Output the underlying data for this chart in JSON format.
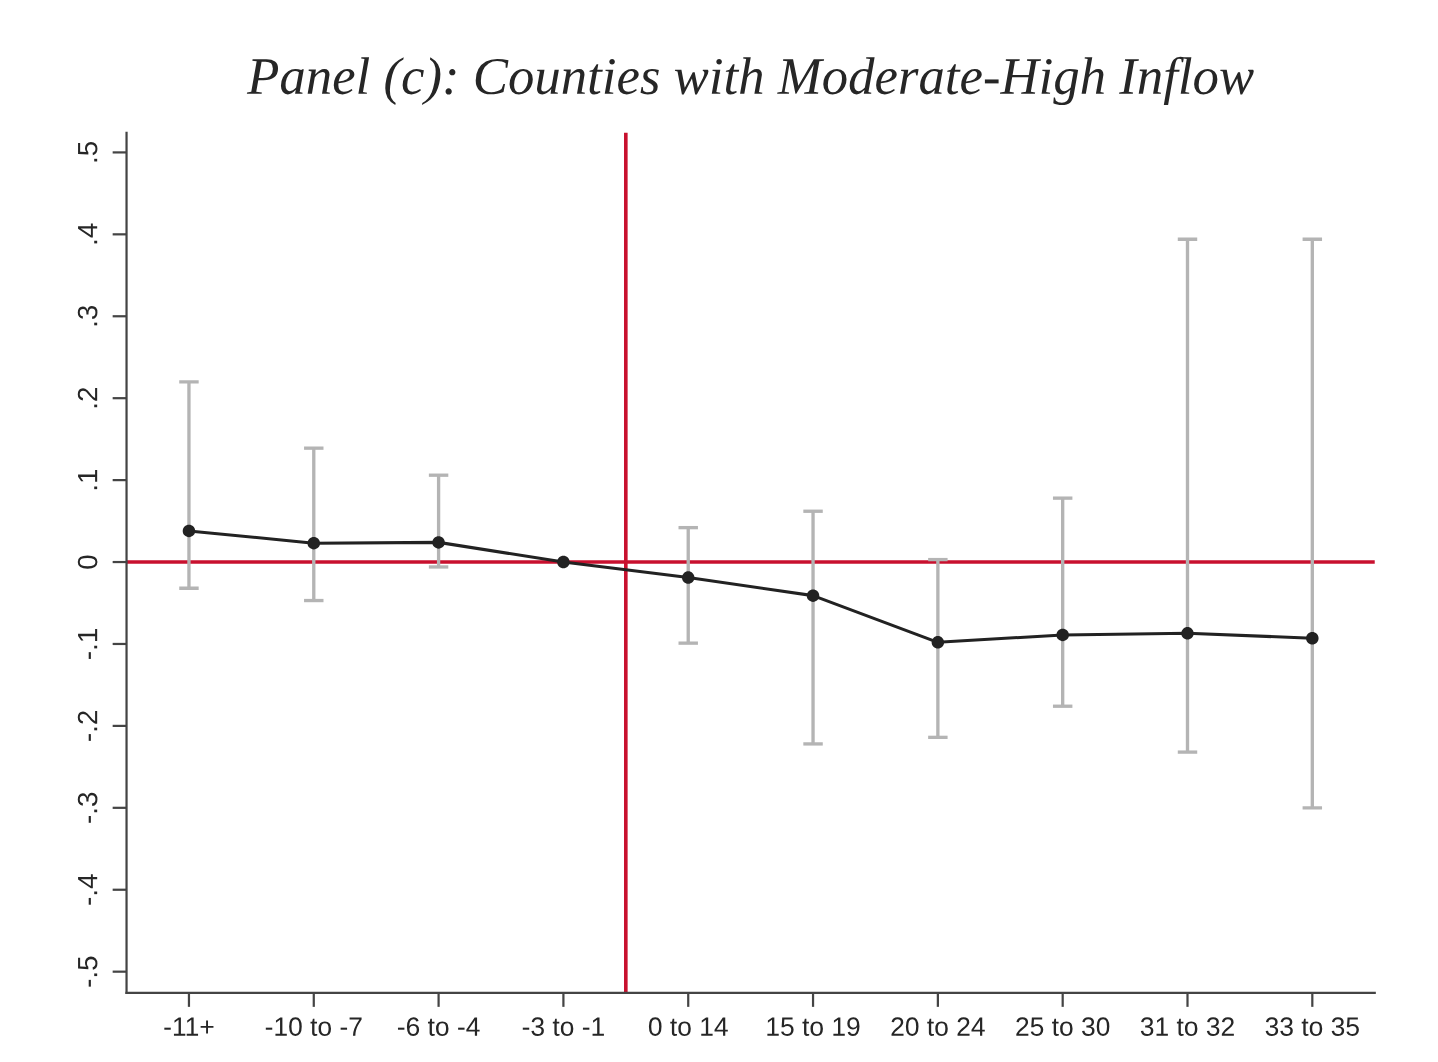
{
  "chart_data": {
    "type": "line",
    "title": "Panel (c): Counties with Moderate-High Inflow",
    "categories": [
      "-11+",
      "-10 to -7",
      "-6 to -4",
      "-3 to -1",
      "0 to 14",
      "15 to 19",
      "20 to 24",
      "25 to 30",
      "31 to 32",
      "33 to 35"
    ],
    "series": [
      {
        "color": "#222222",
        "values": [
          0.038,
          0.023,
          0.024,
          0.0,
          -0.019,
          -0.041,
          -0.098,
          -0.089,
          -0.087,
          -0.093
        ],
        "errors": [
          [
            -0.032,
            0.22
          ],
          [
            -0.047,
            0.139
          ],
          [
            -0.006,
            0.106
          ],
          null,
          [
            -0.099,
            0.042
          ],
          [
            -0.222,
            0.062
          ],
          [
            -0.214,
            0.003
          ],
          [
            -0.176,
            0.078
          ],
          [
            -0.232,
            0.394
          ],
          [
            -0.3,
            0.394
          ]
        ]
      }
    ],
    "ylim": [
      -0.526,
      0.524
    ],
    "yticks": [
      {
        "value": -0.5,
        "label": "-.5"
      },
      {
        "value": -0.4,
        "label": "-.4"
      },
      {
        "value": -0.3,
        "label": "-.3"
      },
      {
        "value": -0.2,
        "label": "-.2"
      },
      {
        "value": -0.1,
        "label": "-.1"
      },
      0,
      {
        "value": 0.1,
        "label": ".1"
      },
      {
        "value": 0.2,
        "label": ".2"
      },
      {
        "value": 0.3,
        "label": ".3"
      },
      {
        "value": 0.4,
        "label": ".4"
      },
      {
        "value": 0.5,
        "label": ".5"
      }
    ],
    "ref_lines": [
      {
        "axis": "y",
        "value": 0,
        "color": "#c8102e"
      }
    ],
    "marker": "circle",
    "line_style": "solid",
    "grid": false,
    "legend": false
  }
}
